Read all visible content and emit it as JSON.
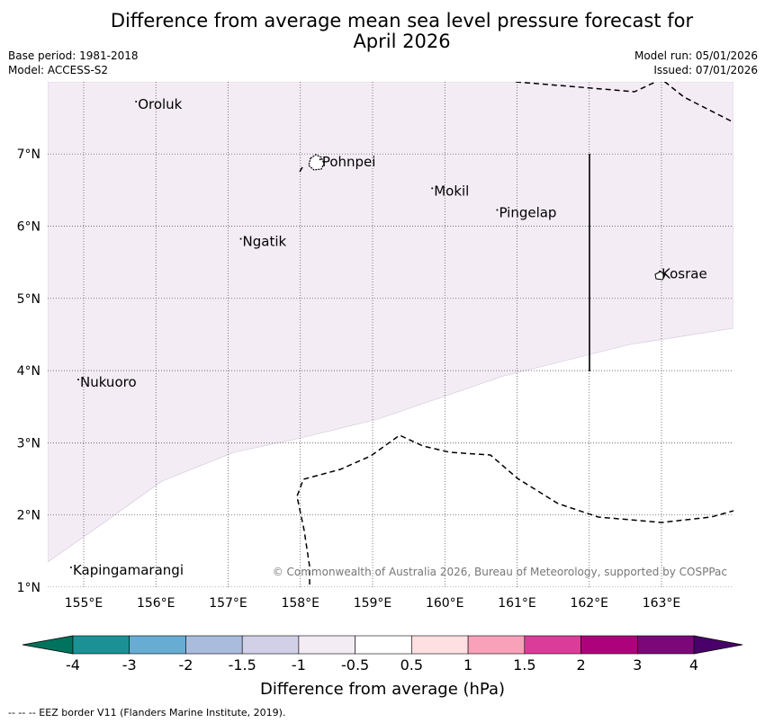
{
  "title_line1": "Difference from average mean sea level pressure forecast for",
  "title_line2": "April 2026",
  "base_period": "Base period: 1981-2018",
  "model": "Model: ACCESS-S2",
  "model_run": "Model run: 05/01/2026",
  "issued": "Issued: 07/01/2026",
  "copyright": "© Commonwealth of Australia 2026, Bureau of Meteorology, supported by COSPPac",
  "footer": "-- -- -- EEZ border V11 (Flanders Marine Institute, 2019).",
  "map": {
    "lon_range": [
      154.5,
      164.0
    ],
    "lat_range": [
      1.0,
      8.0
    ],
    "lon_ticks": [
      {
        "value": 155,
        "label": "155°E"
      },
      {
        "value": 156,
        "label": "156°E"
      },
      {
        "value": 157,
        "label": "157°E"
      },
      {
        "value": 158,
        "label": "158°E"
      },
      {
        "value": 159,
        "label": "159°E"
      },
      {
        "value": 160,
        "label": "160°E"
      },
      {
        "value": 161,
        "label": "161°E"
      },
      {
        "value": 162,
        "label": "162°E"
      },
      {
        "value": 163,
        "label": "163°E"
      }
    ],
    "lat_ticks": [
      {
        "value": 1,
        "label": "1°N"
      },
      {
        "value": 2,
        "label": "2°N"
      },
      {
        "value": 3,
        "label": "3°N"
      },
      {
        "value": 4,
        "label": "4°N"
      },
      {
        "value": 5,
        "label": "5°N"
      },
      {
        "value": 6,
        "label": "6°N"
      },
      {
        "value": 7,
        "label": "7°N"
      }
    ],
    "places": [
      {
        "name": "Oroluk",
        "lon": 155.75,
        "lat": 7.65
      },
      {
        "name": "Pohnpei",
        "lon": 158.3,
        "lat": 6.85
      },
      {
        "name": "Mokil",
        "lon": 159.85,
        "lat": 6.45
      },
      {
        "name": "Pingelap",
        "lon": 160.75,
        "lat": 6.15
      },
      {
        "name": "Ngatik",
        "lon": 157.2,
        "lat": 5.75
      },
      {
        "name": "Kosrae",
        "lon": 163.0,
        "lat": 5.3
      },
      {
        "name": "Nukuoro",
        "lon": 154.95,
        "lat": 3.8
      },
      {
        "name": "Kapingamarangi",
        "lon": 154.85,
        "lat": 1.2
      }
    ],
    "anomaly_region_color": "#f4ecf5",
    "anomaly_region_value_hPa": "-1 to -0.5"
  },
  "colorbar": {
    "title": "Difference from average (hPa)",
    "tick_labels": [
      "-4",
      "-3",
      "-2",
      "-1.5",
      "-1",
      "-0.5",
      "0.5",
      "1",
      "1.5",
      "2",
      "3",
      "4"
    ],
    "colors": [
      "#1a9295",
      "#67acd3",
      "#a9bcdd",
      "#d2d0e6",
      "#f4ecf5",
      "#ffffff",
      "#fee0e3",
      "#f8a1b8",
      "#dc3c99",
      "#ae027d",
      "#7b0778"
    ],
    "under_color": "#00735e",
    "over_color": "#49006a"
  }
}
